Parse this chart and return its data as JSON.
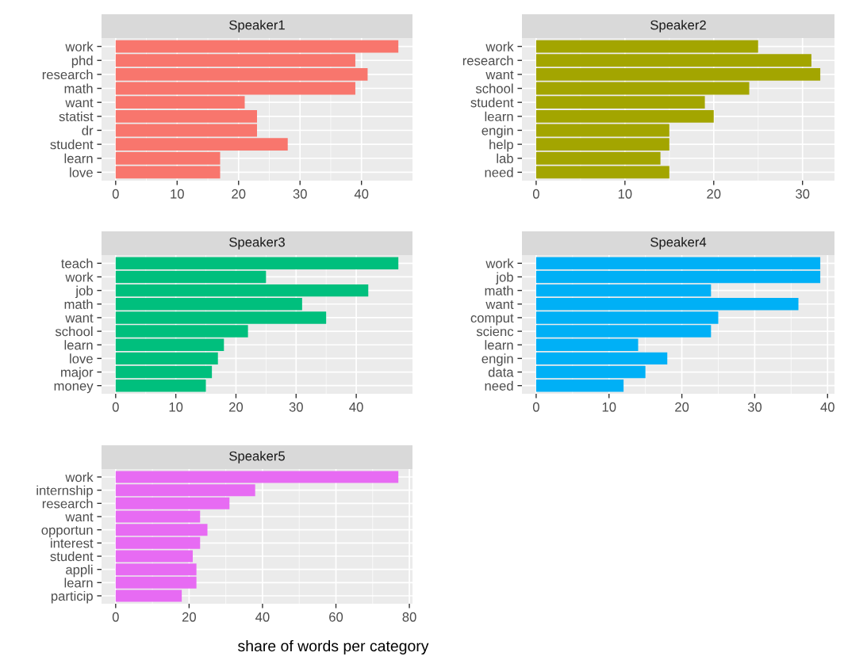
{
  "chart_data": [
    {
      "type": "bar",
      "orientation": "horizontal",
      "title": "Speaker1",
      "categories": [
        "work",
        "phd",
        "research",
        "math",
        "want",
        "statist",
        "dr",
        "student",
        "learn",
        "love"
      ],
      "values": [
        46,
        39,
        41,
        39,
        21,
        23,
        23,
        28,
        17,
        17
      ],
      "color": "#f8766d",
      "xlim": [
        -2.3,
        48.3
      ],
      "xticks": [
        0,
        10,
        20,
        30,
        40
      ],
      "grid": true
    },
    {
      "type": "bar",
      "orientation": "horizontal",
      "title": "Speaker2",
      "categories": [
        "work",
        "research",
        "want",
        "school",
        "student",
        "learn",
        "engin",
        "help",
        "lab",
        "need"
      ],
      "values": [
        25,
        31,
        32,
        24,
        19,
        20,
        15,
        15,
        14,
        15
      ],
      "color": "#a3a500",
      "xlim": [
        -1.6,
        33.6
      ],
      "xticks": [
        0,
        10,
        20,
        30
      ],
      "grid": true
    },
    {
      "type": "bar",
      "orientation": "horizontal",
      "title": "Speaker3",
      "categories": [
        "teach",
        "work",
        "job",
        "math",
        "want",
        "school",
        "learn",
        "love",
        "major",
        "money"
      ],
      "values": [
        47,
        25,
        42,
        31,
        35,
        22,
        18,
        17,
        16,
        15
      ],
      "color": "#00bf7d",
      "xlim": [
        -2.35,
        49.35
      ],
      "xticks": [
        0,
        10,
        20,
        30,
        40
      ],
      "grid": true
    },
    {
      "type": "bar",
      "orientation": "horizontal",
      "title": "Speaker4",
      "categories": [
        "work",
        "job",
        "math",
        "want",
        "comput",
        "scienc",
        "learn",
        "engin",
        "data",
        "need"
      ],
      "values": [
        39,
        39,
        24,
        36,
        25,
        24,
        14,
        18,
        15,
        12
      ],
      "color": "#00b0f6",
      "xlim": [
        -1.95,
        40.95
      ],
      "xticks": [
        0,
        10,
        20,
        30,
        40
      ],
      "grid": true
    },
    {
      "type": "bar",
      "orientation": "horizontal",
      "title": "Speaker5",
      "xlabel": "share of words per category",
      "categories": [
        "work",
        "internship",
        "research",
        "want",
        "opportun",
        "interest",
        "student",
        "appli",
        "learn",
        "particip"
      ],
      "values": [
        77,
        38,
        31,
        23,
        25,
        23,
        21,
        22,
        22,
        18
      ],
      "color": "#e76bf3",
      "xlim": [
        -3.85,
        80.85
      ],
      "xticks": [
        0,
        20,
        40,
        60,
        80
      ],
      "grid": true
    }
  ]
}
